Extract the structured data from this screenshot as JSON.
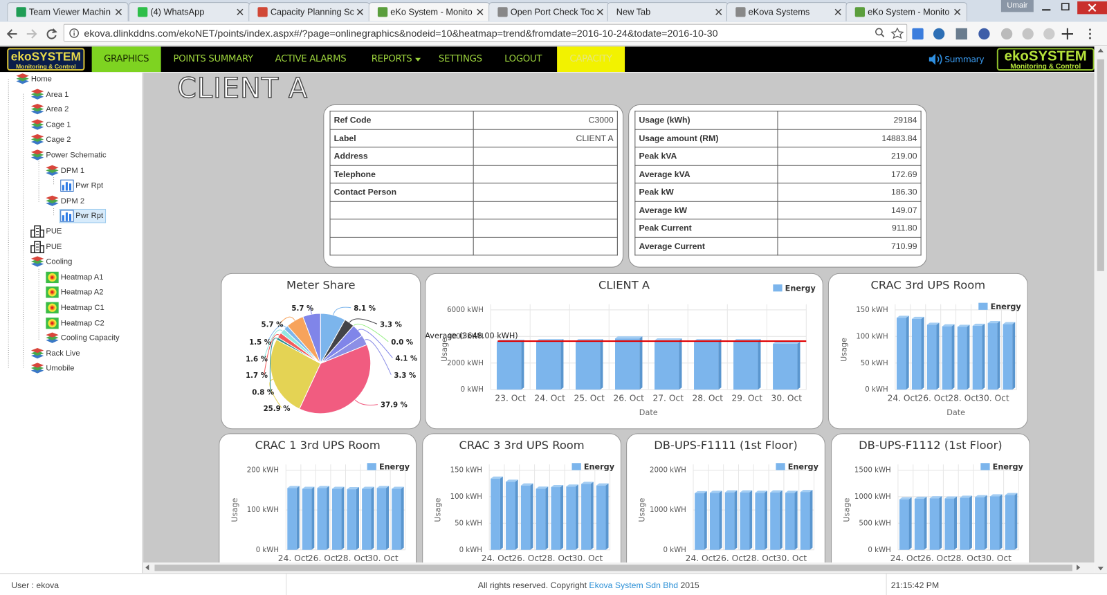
{
  "browser": {
    "tabs": [
      "Team Viewer Machin",
      "(4) WhatsApp",
      "Capacity Planning Sc",
      "eKo System - Monito",
      "Open Port Check Too",
      "New Tab",
      "eKova Systems",
      "eKo System - Monito"
    ],
    "url": "ekova.dlinkddns.com/ekoNET/points/index.aspx#/?page=onlinegraphics&nodeid=10&heatmap=trend&fromdate=2016-10-24&todate=2016-10-30",
    "profile": "Umair"
  },
  "nav": {
    "logo_title": "ekoSYSTEM",
    "logo_subtitle": "Monitoring & Control",
    "items": [
      "GRAPHICS",
      "POINTS SUMMARY",
      "ACTIVE ALARMS",
      "REPORTS",
      "SETTINGS",
      "LOGOUT",
      "CAPACITY"
    ],
    "summary": "Summary"
  },
  "tree": [
    "Home",
    "Area 1",
    "Area 2",
    "Cage 1",
    "Cage 2",
    "Power Schematic",
    "DPM 1",
    "Pwr Rpt",
    "DPM 2",
    "Pwr Rpt",
    "PUE",
    "PUE",
    "Cooling",
    "Heatmap A1",
    "Heatmap A2",
    "Heatmap C1",
    "Heatmap C2",
    "Cooling Capacity",
    "Rack Live",
    "Umobile"
  ],
  "page": {
    "title": "CLIENT A"
  },
  "info": {
    "left": [
      {
        "label": "Ref Code",
        "value": "C3000"
      },
      {
        "label": "Label",
        "value": "CLIENT A"
      },
      {
        "label": "Address"
      },
      {
        "label": "Telephone"
      },
      {
        "label": "Contact Person"
      }
    ],
    "right": [
      {
        "label": "Usage (kWh)",
        "value": "29184"
      },
      {
        "label": "Usage amount (RM)",
        "value": "14883.84"
      },
      {
        "label": "Peak kVA",
        "value": "219.00"
      },
      {
        "label": "Average kVA",
        "value": "172.69"
      },
      {
        "label": "Peak kW",
        "value": "186.30"
      },
      {
        "label": "Average kW",
        "value": "149.07"
      },
      {
        "label": "Peak Current",
        "value": "911.80"
      },
      {
        "label": "Average Current",
        "value": "710.99"
      }
    ]
  },
  "chart_data": [
    {
      "type": "pie",
      "title": "Meter Share",
      "values": [
        8.1,
        3.3,
        0.0,
        4.1,
        3.3,
        37.9,
        25.9,
        0.8,
        1.7,
        1.6,
        1.5,
        5.7,
        5.7
      ],
      "value_labels": [
        "8.1 %",
        "3.3 %",
        "0.0 %",
        "4.1 %",
        "3.3 %",
        "37.9 %",
        "25.9 %",
        "0.8 %",
        "1.7 %",
        "1.6 %",
        "1.5 %",
        "5.7 %",
        "5.7 %"
      ],
      "colors": [
        "#7cb5ec",
        "#434348",
        "#90ed7d",
        "#8085e9",
        "#8c8fe6",
        "#f15c80",
        "#e4d354",
        "#2b908f",
        "#f45b5b",
        "#91e8e1",
        "#7cb5ec",
        "#f7a35c",
        "#8085e9"
      ]
    },
    {
      "type": "bar",
      "title": "CLIENT A",
      "categories": [
        "23. Oct",
        "24. Oct",
        "25. Oct",
        "26. Oct",
        "27. Oct",
        "28. Oct",
        "29. Oct",
        "30. Oct"
      ],
      "series": [
        {
          "name": "Energy",
          "color": "#7cb5ec",
          "values": [
            3600,
            3650,
            3650,
            3850,
            3700,
            3650,
            3650,
            3450
          ]
        }
      ],
      "ylim": [
        0,
        6000
      ],
      "yticks": [
        {
          "value": 0,
          "label": "0 kWH"
        },
        {
          "value": 2000,
          "label": "2000 kWH"
        },
        {
          "value": 4000,
          "label": "4000 kWH"
        },
        {
          "value": 6000,
          "label": "6000 kWH"
        }
      ],
      "xlabel": "Date",
      "ylabel": "Usage",
      "legend": "top-right",
      "annotation": {
        "text": "Average (3648.00 kWH)",
        "value": 3648,
        "color": "#e00000"
      }
    },
    {
      "type": "bar",
      "title": "CRAC 3rd UPS Room",
      "categories": [
        "24. Oct",
        null,
        "26. Oct",
        null,
        "28. Oct",
        null,
        "30. Oct",
        null
      ],
      "series": [
        {
          "name": "Energy",
          "color": "#7cb5ec",
          "values": [
            135,
            133,
            122,
            119,
            118,
            120,
            125,
            123
          ]
        }
      ],
      "ylim": [
        0,
        150
      ],
      "yticks": [
        {
          "value": 0,
          "label": "0 kWH"
        },
        {
          "value": 50,
          "label": "50 kWH"
        },
        {
          "value": 100,
          "label": "100 kWH"
        },
        {
          "value": 150,
          "label": "150 kWH"
        }
      ],
      "xlabel": "Date",
      "ylabel": "Usage",
      "legend": "top-right"
    },
    {
      "type": "bar",
      "title": "CRAC 1 3rd UPS Room",
      "categories": [
        "24. Oct",
        null,
        "26. Oct",
        null,
        "28. Oct",
        null,
        "30. Oct",
        null
      ],
      "series": [
        {
          "name": "Energy",
          "color": "#7cb5ec",
          "values": [
            155,
            153,
            155,
            153,
            152,
            153,
            155,
            153
          ]
        }
      ],
      "ylim": [
        0,
        200
      ],
      "yticks": [
        {
          "value": 0,
          "label": "0 kWH"
        },
        {
          "value": 100,
          "label": "100 kWH"
        },
        {
          "value": 200,
          "label": "200 kWH"
        }
      ],
      "ylabel": "Usage",
      "legend": "top-right"
    },
    {
      "type": "bar",
      "title": "CRAC 3 3rd UPS Room",
      "categories": [
        "24. Oct",
        null,
        "26. Oct",
        null,
        "28. Oct",
        null,
        "30. Oct",
        null
      ],
      "series": [
        {
          "name": "Energy",
          "color": "#7cb5ec",
          "values": [
            134,
            128,
            121,
            115,
            118,
            119,
            124,
            121
          ]
        }
      ],
      "ylim": [
        0,
        150
      ],
      "yticks": [
        {
          "value": 0,
          "label": "0 kWH"
        },
        {
          "value": 50,
          "label": "50 kWH"
        },
        {
          "value": 100,
          "label": "100 kWH"
        },
        {
          "value": 150,
          "label": "150 kWH"
        }
      ],
      "ylabel": "Usage",
      "legend": "top-right"
    },
    {
      "type": "bar",
      "title": "DB-UPS-F1111 (1st Floor)",
      "categories": [
        "24. Oct",
        null,
        "26. Oct",
        null,
        "28. Oct",
        null,
        "30. Oct",
        null
      ],
      "series": [
        {
          "name": "Energy",
          "color": "#7cb5ec",
          "values": [
            1420,
            1430,
            1440,
            1440,
            1430,
            1440,
            1430,
            1450
          ]
        }
      ],
      "ylim": [
        0,
        2000
      ],
      "yticks": [
        {
          "value": 0,
          "label": "0 kWH"
        },
        {
          "value": 1000,
          "label": "1000 kWH"
        },
        {
          "value": 2000,
          "label": "2000 kWH"
        }
      ],
      "ylabel": "Usage",
      "legend": "top-right"
    },
    {
      "type": "bar",
      "title": "DB-UPS-F1112 (1st Floor)",
      "categories": [
        "24. Oct",
        null,
        "26. Oct",
        null,
        "28. Oct",
        null,
        "30. Oct",
        null
      ],
      "series": [
        {
          "name": "Energy",
          "color": "#7cb5ec",
          "values": [
            950,
            960,
            970,
            965,
            980,
            990,
            1005,
            1030
          ]
        }
      ],
      "ylim": [
        0,
        1500
      ],
      "yticks": [
        {
          "value": 0,
          "label": "0 kWH"
        },
        {
          "value": 500,
          "label": "500 kWH"
        },
        {
          "value": 1000,
          "label": "1000 kWH"
        },
        {
          "value": 1500,
          "label": "1500 kWH"
        }
      ],
      "ylabel": "Usage",
      "legend": "top-right"
    }
  ],
  "footer": {
    "user": "User : ekova",
    "copyright": "All rights reserved. Copyright",
    "company": "Ekova System Sdn Bhd",
    "year": "2015",
    "time": "21:15:42 PM"
  }
}
